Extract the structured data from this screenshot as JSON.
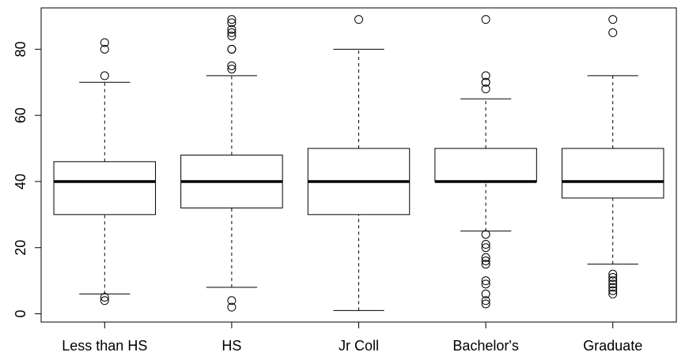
{
  "chart_data": {
    "type": "boxplot",
    "categories": [
      "Less than HS",
      "HS",
      "Jr Coll",
      "Bachelor's",
      "Graduate"
    ],
    "boxes": [
      {
        "min": 6,
        "q1": 30,
        "median": 40,
        "q3": 46,
        "max": 70,
        "outliers": [
          82,
          80,
          72,
          5,
          4
        ]
      },
      {
        "min": 8,
        "q1": 32,
        "median": 40,
        "q3": 48,
        "max": 72,
        "outliers": [
          89,
          88,
          86,
          85,
          84,
          80,
          80,
          75,
          74,
          4,
          2
        ]
      },
      {
        "min": 1,
        "q1": 30,
        "median": 40,
        "q3": 50,
        "max": 80,
        "outliers": [
          89
        ]
      },
      {
        "min": 25,
        "q1": 40,
        "median": 40,
        "q3": 50,
        "max": 65,
        "outliers": [
          89,
          72,
          70,
          70,
          68,
          24,
          21,
          20,
          17,
          16,
          15,
          10,
          9,
          6,
          4,
          3
        ]
      },
      {
        "min": 15,
        "q1": 35,
        "median": 40,
        "q3": 50,
        "max": 72,
        "outliers": [
          89,
          85,
          12,
          11,
          10,
          9,
          8,
          7,
          6
        ]
      }
    ],
    "color": "#000000",
    "ylim": [
      -2.5,
      92.5
    ],
    "yticks": [
      0,
      20,
      40,
      60,
      80
    ]
  }
}
